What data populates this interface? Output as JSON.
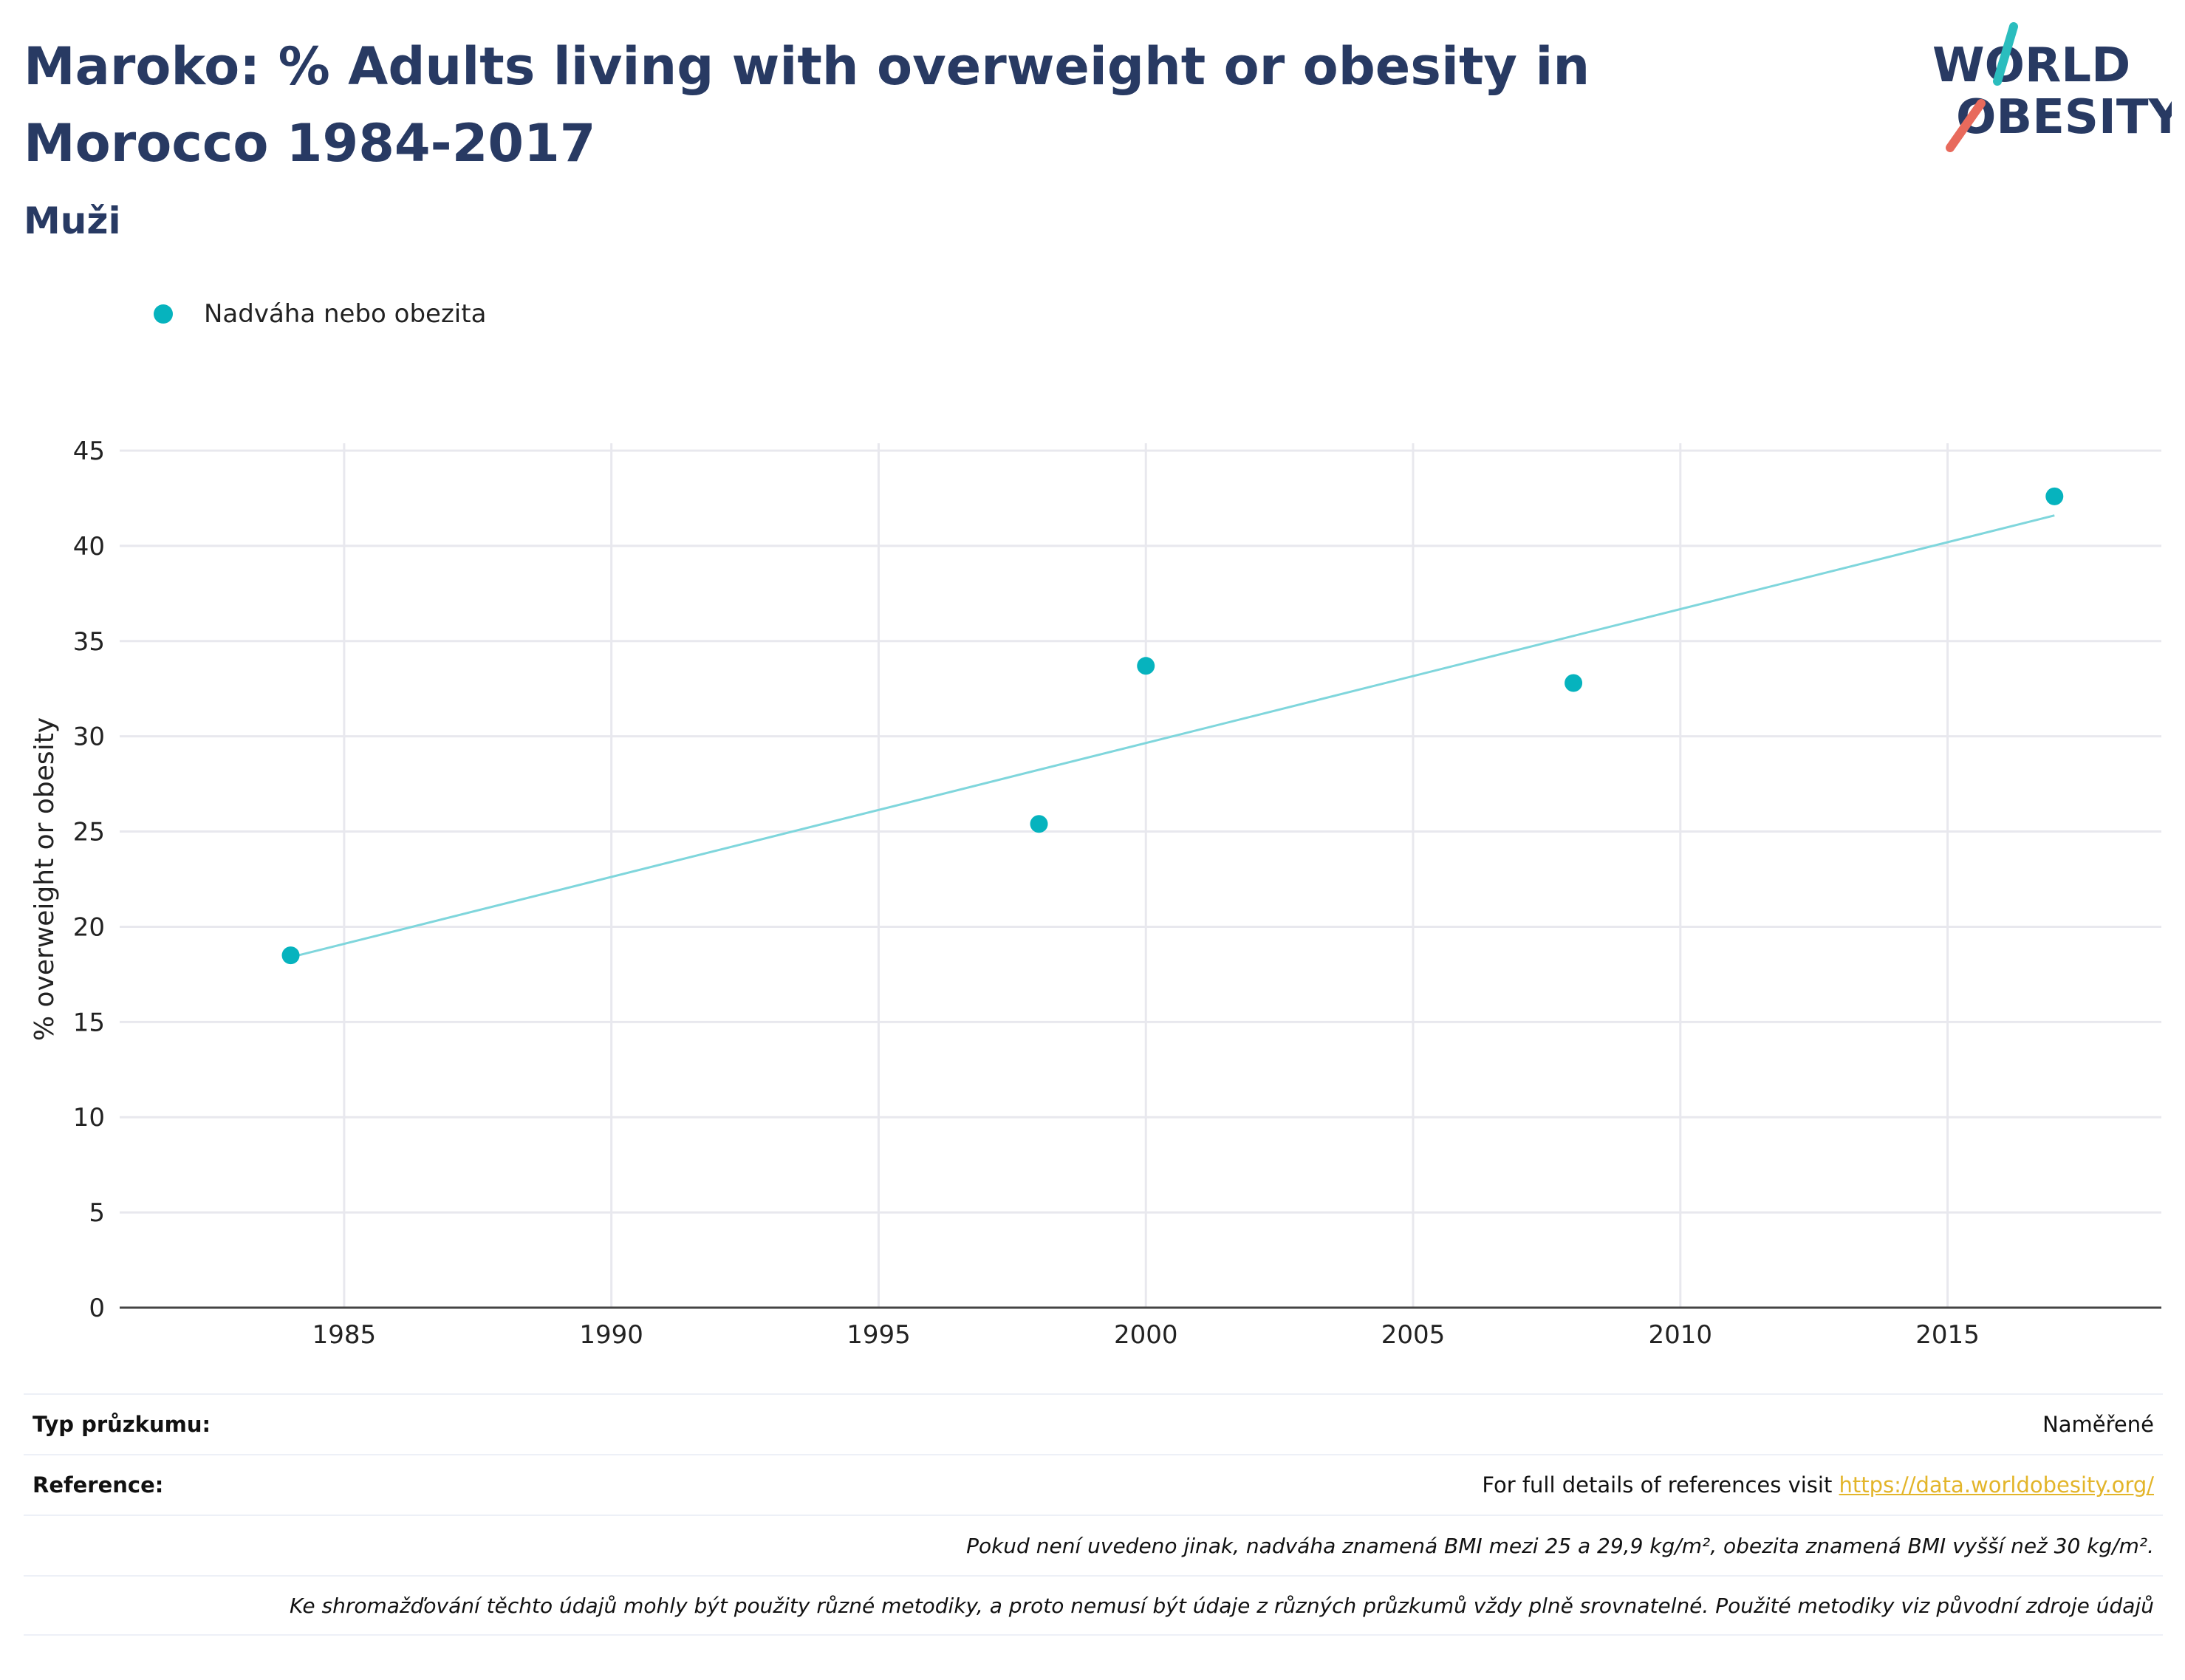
{
  "header": {
    "title": "Maroko: % Adults living with overweight or obesity in Morocco 1984-2017",
    "subtitle": "Muži"
  },
  "logo": {
    "line1": "WORLD",
    "line2": "OBESITY",
    "colors": {
      "text": "#283a63",
      "slash_top": "#2bbdbe",
      "slash_bottom": "#e86a5c"
    }
  },
  "legend": {
    "items": [
      {
        "label": "Nadváha nebo obezita",
        "color": "#06b3be"
      }
    ]
  },
  "chart_data": {
    "type": "scatter",
    "title": "",
    "xlabel": "",
    "ylabel": "% overweight or obesity",
    "xlim": [
      1980.8,
      2019
    ],
    "ylim": [
      0,
      45
    ],
    "x_ticks": [
      1985,
      1990,
      1995,
      2000,
      2005,
      2010,
      2015
    ],
    "y_ticks": [
      0,
      5,
      10,
      15,
      20,
      25,
      30,
      35,
      40,
      45
    ],
    "grid": true,
    "series": [
      {
        "name": "Nadváha nebo obezita",
        "color": "#06b3be",
        "points": [
          {
            "x": 1984,
            "y": 18.5
          },
          {
            "x": 1998,
            "y": 25.4
          },
          {
            "x": 2000,
            "y": 33.7
          },
          {
            "x": 2008,
            "y": 32.8
          },
          {
            "x": 2017,
            "y": 42.6
          }
        ]
      }
    ],
    "trendline": {
      "color": "#7fd6dc",
      "points": [
        {
          "x": 1984,
          "y": 18.4
        },
        {
          "x": 2017,
          "y": 41.6
        }
      ]
    }
  },
  "footer": {
    "survey_type_label": "Typ průzkumu:",
    "survey_type_value": "Naměřené",
    "reference_label": "Reference:",
    "reference_text": "For full details of references visit ",
    "reference_link": "https://data.worldobesity.org/",
    "note_bmi": "Pokud není uvedeno jinak, nadváha znamená BMI mezi 25 a 29,9 kg/m², obezita znamená BMI vyšší než 30 kg/m².",
    "note_methods": "Ke shromažďování těchto údajů mohly být použity různé metodiky, a proto nemusí být údaje z různých průzkumů vždy plně srovnatelné. Použité metodiky viz původní zdroje údajů"
  }
}
